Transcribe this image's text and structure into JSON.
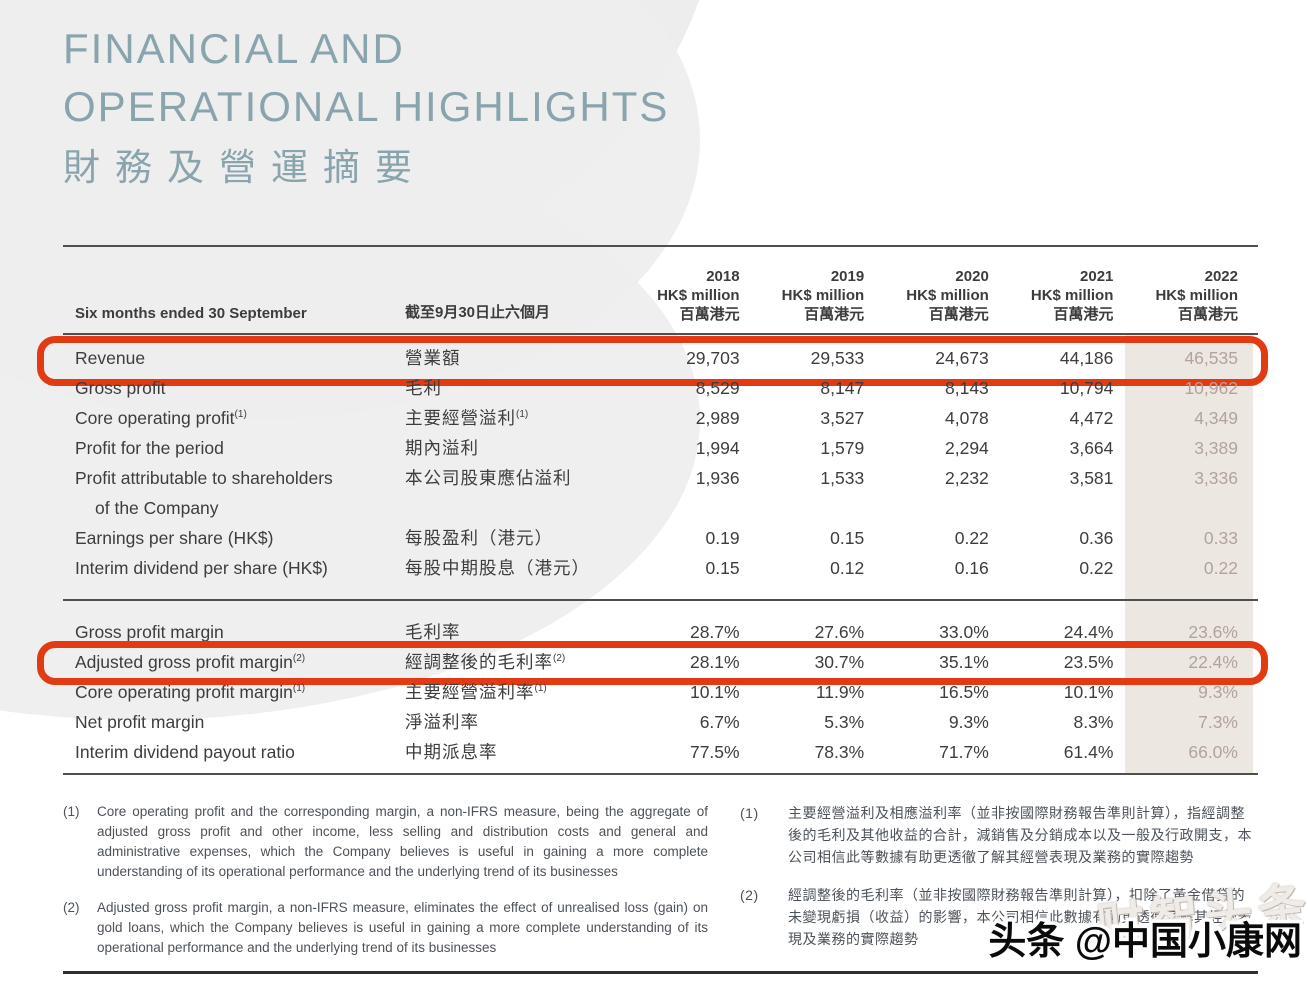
{
  "title": {
    "line1_en": "FINANCIAL AND",
    "line2_en": "OPERATIONAL HIGHLIGHTS",
    "line_zh": "財務及營運摘要"
  },
  "table": {
    "header": {
      "period_en": "Six months ended 30 September",
      "period_zh": "截至9月30日止六個月",
      "years": [
        "2018",
        "2019",
        "2020",
        "2021",
        "2022"
      ],
      "unit_en": "HK$ million",
      "unit_zh": "百萬港元"
    },
    "sections": [
      {
        "id": "amounts",
        "rows": [
          {
            "label_en": "Revenue",
            "label_zh": "營業額",
            "values": [
              "29,703",
              "29,533",
              "24,673",
              "44,186",
              "46,535"
            ],
            "highlight": true
          },
          {
            "label_en": "Gross profit",
            "label_zh": "毛利",
            "values": [
              "8,529",
              "8,147",
              "8,143",
              "10,794",
              "10,962"
            ]
          },
          {
            "label_en": "Core operating profit",
            "sup": "(1)",
            "label_zh": "主要經營溢利",
            "values": [
              "2,989",
              "3,527",
              "4,078",
              "4,472",
              "4,349"
            ]
          },
          {
            "label_en": "Profit for the period",
            "label_zh": "期內溢利",
            "values": [
              "1,994",
              "1,579",
              "2,294",
              "3,664",
              "3,389"
            ]
          },
          {
            "label_en": "Profit attributable to shareholders",
            "label_en2": "of the Company",
            "label_zh": "本公司股東應佔溢利",
            "values": [
              "1,936",
              "1,533",
              "2,232",
              "3,581",
              "3,336"
            ]
          },
          {
            "label_en": "Earnings per share (HK$)",
            "label_zh": "每股盈利（港元）",
            "values": [
              "0.19",
              "0.15",
              "0.22",
              "0.36",
              "0.33"
            ]
          },
          {
            "label_en": "Interim dividend per share (HK$)",
            "label_zh": "每股中期股息（港元）",
            "values": [
              "0.15",
              "0.12",
              "0.16",
              "0.22",
              "0.22"
            ]
          }
        ]
      },
      {
        "id": "margins",
        "rows": [
          {
            "label_en": "Gross profit margin",
            "label_zh": "毛利率",
            "values": [
              "28.7%",
              "27.6%",
              "33.0%",
              "24.4%",
              "23.6%"
            ]
          },
          {
            "label_en": "Adjusted gross profit margin",
            "sup": "(2)",
            "label_zh": "經調整後的毛利率",
            "values": [
              "28.1%",
              "30.7%",
              "35.1%",
              "23.5%",
              "22.4%"
            ],
            "highlight": true
          },
          {
            "label_en": "Core operating profit margin",
            "sup": "(1)",
            "label_zh": "主要經營溢利率",
            "values": [
              "10.1%",
              "11.9%",
              "16.5%",
              "10.1%",
              "9.3%"
            ]
          },
          {
            "label_en": "Net profit margin",
            "label_zh": "淨溢利率",
            "values": [
              "6.7%",
              "5.3%",
              "9.3%",
              "8.3%",
              "7.3%"
            ]
          },
          {
            "label_en": "Interim dividend payout ratio",
            "label_zh": "中期派息率",
            "values": [
              "77.5%",
              "78.3%",
              "71.7%",
              "61.4%",
              "66.0%"
            ]
          }
        ]
      }
    ]
  },
  "footnotes": {
    "en": [
      {
        "num": "(1)",
        "text": "Core operating profit and the corresponding margin, a non-IFRS measure, being the aggregate of adjusted gross profit and other income, less selling and distribution costs and general and administrative expenses, which the Company believes is useful in gaining a more complete understanding of its operational performance and the underlying trend of its businesses"
      },
      {
        "num": "(2)",
        "text": "Adjusted gross profit margin, a non-IFRS measure, eliminates the effect of unrealised loss (gain) on gold loans, which the Company believes is useful in gaining a more complete understanding of its operational performance and the underlying trend of its businesses"
      }
    ],
    "zh": [
      {
        "num": "(1)",
        "text": "主要經營溢利及相應溢利率（並非按國際財務報告準則計算），指經調整後的毛利及其他收益的合計，減銷售及分銷成本以及一般及行政開支，本公司相信此等數據有助更透徹了解其經營表現及業務的實際趨勢"
      },
      {
        "num": "(2)",
        "text": "經調整後的毛利率（並非按國際財務報告準則計算），扣除了黃金借貸的未變現虧損（收益）的影響，本公司相信此數據有助更透徹了解其經營表現及業務的實際趨勢"
      }
    ]
  },
  "watermarks": {
    "faint": "财智头条",
    "bold": "头条 @中国小康网"
  },
  "colors": {
    "title": "#8aa4ae",
    "annotation_red": "#e23b14",
    "column_2022_band": "#ece7e1",
    "column_2022_text": "#b3a29d",
    "body_text": "#3d3d3d"
  }
}
